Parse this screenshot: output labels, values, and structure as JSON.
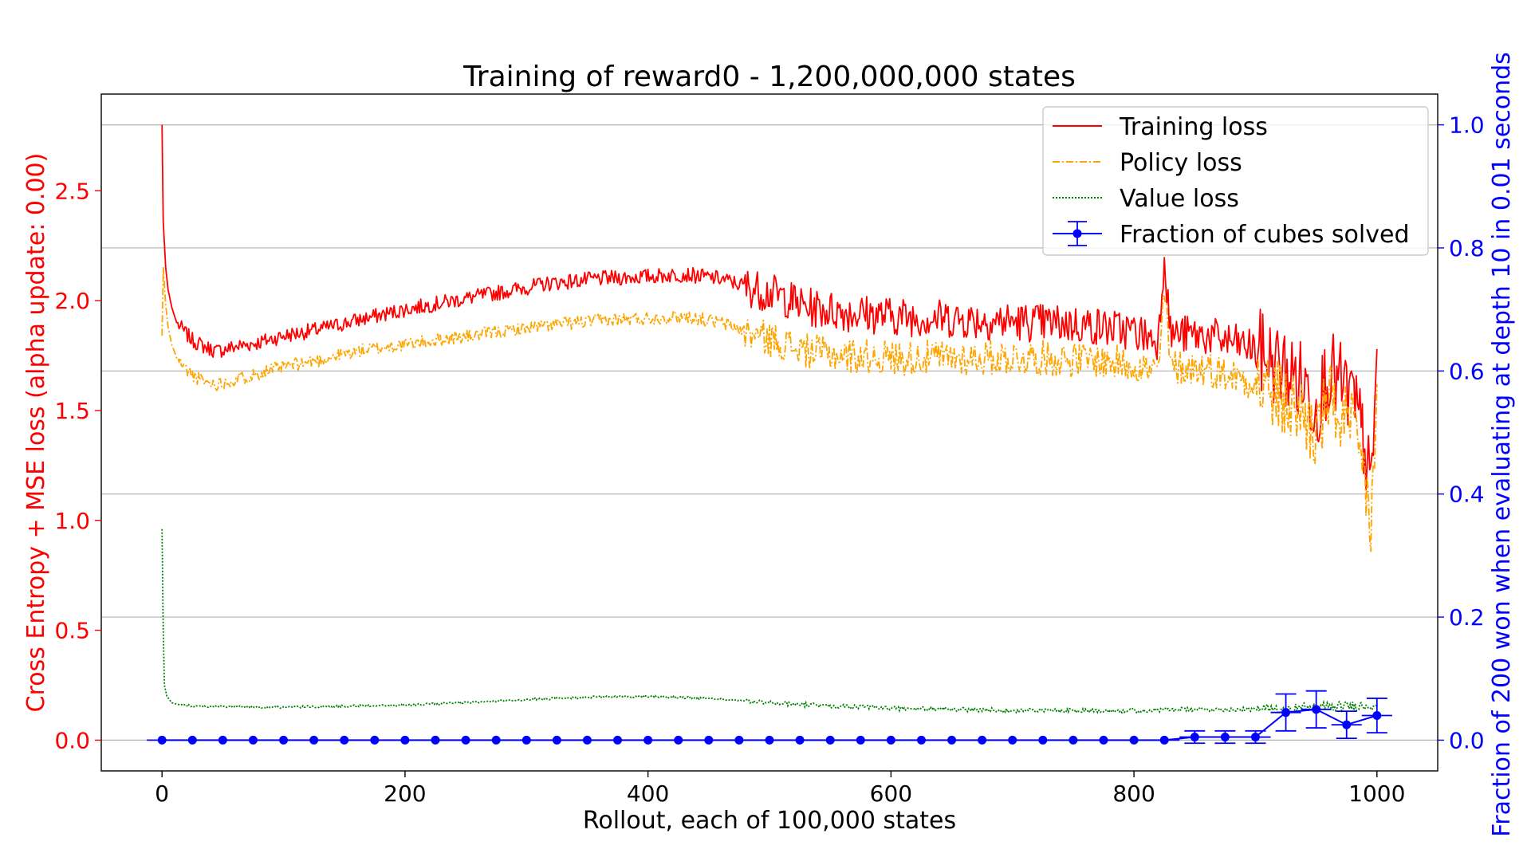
{
  "chart_data": {
    "type": "line",
    "title": "Training of reward0 - 1,200,000,000 states",
    "xlabel": "Rollout, each of 100,000 states",
    "ylabel_left": "Cross Entropy + MSE loss (alpha update: 0.00)",
    "ylabel_right": "Fraction of 200 won when evaluating at depth 10 in 0.01 seconds",
    "xlim": [
      -50,
      1050
    ],
    "ylim_left": [
      -0.14,
      2.94
    ],
    "ylim_right": [
      -0.05,
      1.05
    ],
    "x_ticks": [
      0,
      200,
      400,
      600,
      800,
      1000
    ],
    "y_ticks_left": [
      0.0,
      0.5,
      1.0,
      1.5,
      2.0,
      2.5
    ],
    "y_ticks_right": [
      0.0,
      0.2,
      0.4,
      0.6,
      0.8,
      1.0
    ],
    "grid": "horizontal (right axis)",
    "legend_position": "top-right",
    "colors": {
      "training": "#ff0000",
      "policy": "#ffa500",
      "value": "#008000",
      "solved": "#0000ff",
      "left_axis": "#ff0000",
      "right_axis": "#0000ff"
    },
    "series": [
      {
        "name": "Training loss",
        "axis": "left",
        "style": "solid",
        "x": [
          0,
          1,
          3,
          5,
          8,
          12,
          18,
          25,
          35,
          45,
          60,
          80,
          100,
          130,
          160,
          200,
          240,
          280,
          320,
          360,
          400,
          430,
          460,
          490,
          510,
          530,
          560,
          600,
          640,
          680,
          720,
          760,
          800,
          820,
          825,
          830,
          860,
          900,
          920,
          940,
          950,
          960,
          980,
          990,
          995,
          1000
        ],
        "y": [
          2.8,
          2.36,
          2.15,
          2.05,
          1.97,
          1.9,
          1.86,
          1.82,
          1.79,
          1.77,
          1.79,
          1.81,
          1.84,
          1.87,
          1.91,
          1.96,
          2.0,
          2.04,
          2.08,
          2.1,
          2.11,
          2.12,
          2.1,
          2.05,
          2.02,
          1.97,
          1.95,
          1.93,
          1.92,
          1.91,
          1.9,
          1.89,
          1.86,
          1.82,
          2.22,
          1.85,
          1.84,
          1.78,
          1.7,
          1.62,
          1.52,
          1.68,
          1.55,
          1.35,
          1.1,
          1.78
        ]
      },
      {
        "name": "Policy loss",
        "axis": "left",
        "style": "dashdot",
        "x": [
          0,
          1,
          3,
          5,
          8,
          12,
          18,
          25,
          35,
          45,
          60,
          80,
          100,
          130,
          160,
          200,
          240,
          280,
          320,
          360,
          400,
          430,
          460,
          490,
          510,
          530,
          560,
          600,
          640,
          680,
          720,
          760,
          800,
          820,
          825,
          830,
          860,
          900,
          920,
          940,
          950,
          960,
          980,
          990,
          995,
          1000
        ],
        "y": [
          1.84,
          2.15,
          1.98,
          1.88,
          1.8,
          1.74,
          1.7,
          1.66,
          1.63,
          1.62,
          1.64,
          1.67,
          1.7,
          1.73,
          1.77,
          1.8,
          1.83,
          1.86,
          1.89,
          1.91,
          1.92,
          1.93,
          1.9,
          1.84,
          1.81,
          1.77,
          1.75,
          1.74,
          1.74,
          1.74,
          1.74,
          1.73,
          1.71,
          1.67,
          2.05,
          1.7,
          1.69,
          1.63,
          1.55,
          1.48,
          1.38,
          1.55,
          1.4,
          1.2,
          0.95,
          1.62
        ]
      },
      {
        "name": "Value loss",
        "axis": "left",
        "style": "dotted",
        "x": [
          0,
          1,
          2,
          4,
          8,
          15,
          25,
          50,
          100,
          150,
          200,
          250,
          300,
          350,
          400,
          450,
          500,
          550,
          600,
          650,
          700,
          750,
          800,
          850,
          900,
          950,
          1000
        ],
        "y": [
          0.96,
          0.5,
          0.25,
          0.2,
          0.17,
          0.16,
          0.155,
          0.152,
          0.15,
          0.155,
          0.16,
          0.17,
          0.185,
          0.195,
          0.2,
          0.19,
          0.17,
          0.155,
          0.145,
          0.14,
          0.135,
          0.135,
          0.135,
          0.14,
          0.14,
          0.15,
          0.16
        ]
      },
      {
        "name": "Fraction of cubes solved",
        "axis": "right",
        "style": "solid-marker-errorbar",
        "x": [
          0,
          25,
          50,
          75,
          100,
          125,
          150,
          175,
          200,
          225,
          250,
          275,
          300,
          325,
          350,
          375,
          400,
          425,
          450,
          475,
          500,
          525,
          550,
          575,
          600,
          625,
          650,
          675,
          700,
          725,
          750,
          775,
          800,
          825,
          850,
          875,
          900,
          925,
          950,
          975,
          1000
        ],
        "y": [
          0,
          0,
          0,
          0,
          0,
          0,
          0,
          0,
          0,
          0,
          0,
          0,
          0,
          0,
          0,
          0,
          0,
          0,
          0,
          0,
          0,
          0,
          0,
          0,
          0,
          0,
          0,
          0,
          0,
          0,
          0,
          0,
          0,
          0,
          0.005,
          0.005,
          0.005,
          0.045,
          0.05,
          0.025,
          0.04
        ],
        "err": [
          0,
          0,
          0,
          0,
          0,
          0,
          0,
          0,
          0,
          0,
          0,
          0,
          0,
          0,
          0,
          0,
          0,
          0,
          0,
          0,
          0,
          0,
          0,
          0,
          0,
          0,
          0,
          0,
          0,
          0,
          0,
          0,
          0,
          0,
          0.01,
          0.01,
          0.01,
          0.03,
          0.03,
          0.022,
          0.028
        ],
        "xerr": 12.5
      }
    ]
  }
}
